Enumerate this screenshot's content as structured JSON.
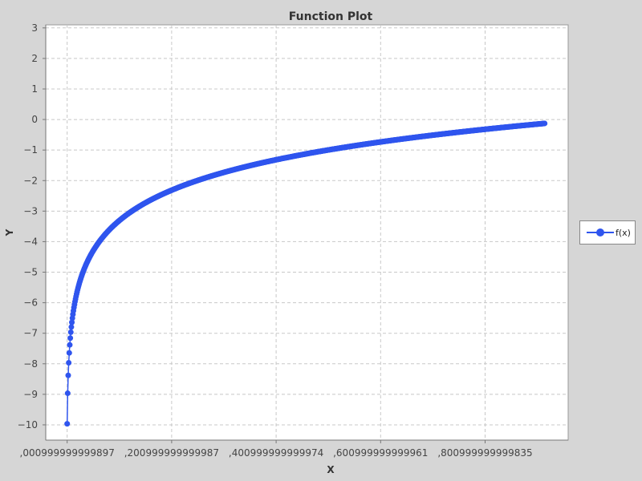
{
  "chart_data": {
    "type": "line",
    "title": "Function Plot",
    "xlabel": "X",
    "ylabel": "Y",
    "x_tick_labels": [
      ",000999999999897",
      ",200999999999987",
      ",400999999999974",
      ",600999999999961",
      ",800999999999835"
    ],
    "x_ticks": [
      0.001,
      0.201,
      0.401,
      0.601,
      0.801
    ],
    "y_ticks": [
      3,
      2,
      1,
      0,
      -1,
      -2,
      -3,
      -4,
      -5,
      -6,
      -7,
      -8,
      -9,
      -10
    ],
    "xlim": [
      -0.04,
      0.96
    ],
    "ylim": [
      -10.5,
      3.1
    ],
    "grid": true,
    "legend_position": "right",
    "series": [
      {
        "name": "f(x)",
        "color": "#2f55ee",
        "function": "ln(x) / ln(2)",
        "x_start": 0.001,
        "x_end": 0.915,
        "x_step": 0.001
      }
    ]
  }
}
